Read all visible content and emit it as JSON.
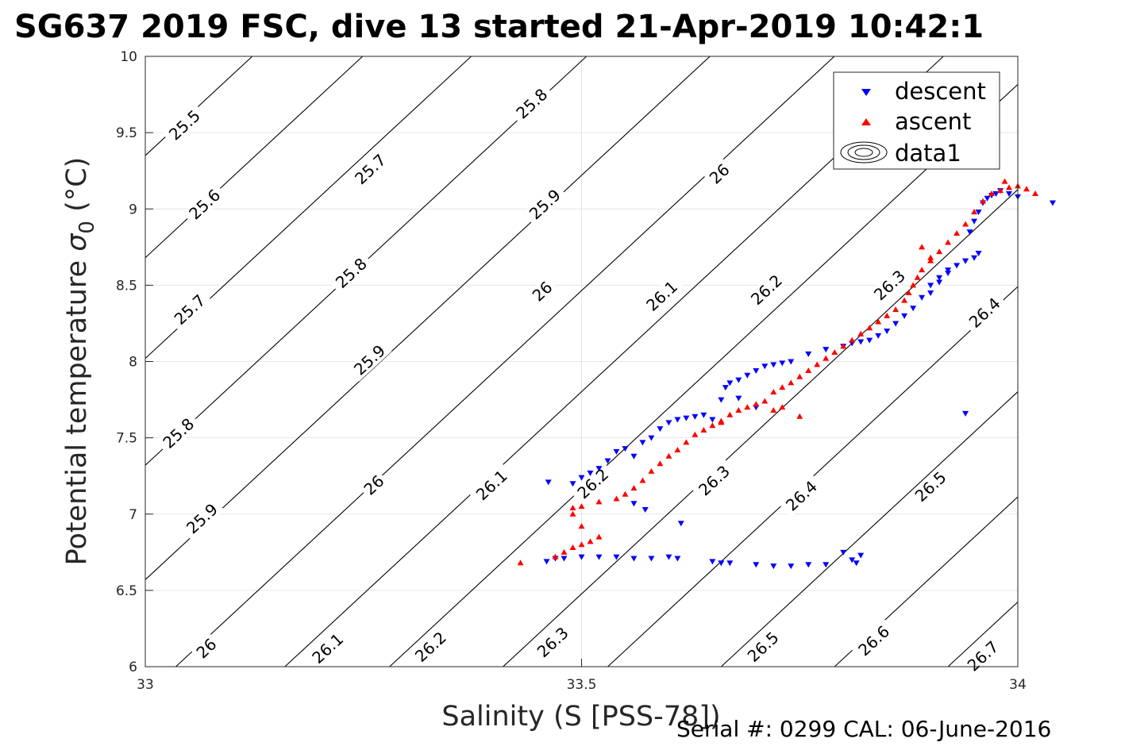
{
  "chart_data": {
    "type": "scatter",
    "title": "SG637 2019 FSC, dive 13 started 21-Apr-2019 10:42:1",
    "xlabel": "Salinity (S [PSS-78])",
    "ylabel_main": "Potential temperature ",
    "ylabel_sigma": "σ",
    "ylabel_sub": "0",
    "ylabel_unit": " (°C)",
    "footer": "Serial #: 0299 CAL: 06-June-2016",
    "xlim": [
      33,
      34
    ],
    "ylim": [
      6,
      10
    ],
    "x_ticks": [
      33,
      33.5,
      34
    ],
    "x_tick_labels": [
      "33",
      "33.5",
      "34"
    ],
    "y_ticks": [
      6,
      6.5,
      7,
      7.5,
      8,
      8.5,
      9,
      9.5,
      10
    ],
    "y_tick_labels": [
      "6",
      "6.5",
      "7",
      "7.5",
      "8",
      "8.5",
      "9",
      "9.5",
      "10"
    ],
    "grid": true,
    "legend_position": "top-right",
    "legend": [
      "descent",
      "ascent",
      "data1"
    ],
    "colors": {
      "descent": "#0000ff",
      "ascent": "#ff0000",
      "contour": "#000000",
      "grid": "#e6e6e6"
    },
    "density_contours": [
      {
        "label": "25.5",
        "x0": 33,
        "y0": 9.35
      },
      {
        "label": "25.6",
        "x0": 33,
        "y0": 8.68
      },
      {
        "label": "25.7",
        "x0": 33,
        "y0": 8.02
      },
      {
        "label": "25.8",
        "x0": 33,
        "y0": 7.32
      },
      {
        "label": "25.9",
        "x0": 33,
        "y0": 6.57
      },
      {
        "label": "26",
        "x0": 33.035,
        "y0": 6
      },
      {
        "label": "26.1",
        "x0": 33.16,
        "y0": 6
      },
      {
        "label": "26.2",
        "x0": 33.28,
        "y0": 6
      },
      {
        "label": "26.3",
        "x0": 33.41,
        "y0": 6
      },
      {
        "label": "26.4",
        "x0": 33.53,
        "y0": 6
      },
      {
        "label": "26.5",
        "x0": 33.66,
        "y0": 6
      },
      {
        "label": "26.6",
        "x0": 33.79,
        "y0": 6
      },
      {
        "label": "26.7",
        "x0": 33.92,
        "y0": 6
      }
    ],
    "contour_labels": [
      {
        "text": "25.5",
        "x": 33.045,
        "y": 9.55
      },
      {
        "text": "25.8",
        "x": 33.443,
        "y": 9.69
      },
      {
        "text": "25.7",
        "x": 33.258,
        "y": 9.26
      },
      {
        "text": "26",
        "x": 33.658,
        "y": 9.23
      },
      {
        "text": "25.6",
        "x": 33.068,
        "y": 9.03
      },
      {
        "text": "25.9",
        "x": 33.458,
        "y": 9.03
      },
      {
        "text": "25.8",
        "x": 33.236,
        "y": 8.58
      },
      {
        "text": "25.7",
        "x": 33.051,
        "y": 8.34
      },
      {
        "text": "26",
        "x": 33.455,
        "y": 8.46
      },
      {
        "text": "26.1",
        "x": 33.592,
        "y": 8.43
      },
      {
        "text": "26.2",
        "x": 33.712,
        "y": 8.47
      },
      {
        "text": "26.3",
        "x": 33.853,
        "y": 8.5
      },
      {
        "text": "26.4",
        "x": 33.962,
        "y": 8.32
      },
      {
        "text": "25.9",
        "x": 33.257,
        "y": 8.01
      },
      {
        "text": "25.8",
        "x": 33.038,
        "y": 7.53
      },
      {
        "text": "26",
        "x": 33.262,
        "y": 7.19
      },
      {
        "text": "26.1",
        "x": 33.397,
        "y": 7.19
      },
      {
        "text": "26.2",
        "x": 33.513,
        "y": 7.2
      },
      {
        "text": "26.3",
        "x": 33.652,
        "y": 7.22
      },
      {
        "text": "26.4",
        "x": 33.752,
        "y": 7.12
      },
      {
        "text": "26.5",
        "x": 33.9,
        "y": 7.18
      },
      {
        "text": "25.9",
        "x": 33.065,
        "y": 6.97
      },
      {
        "text": "26",
        "x": 33.07,
        "y": 6.12
      },
      {
        "text": "26.1",
        "x": 33.209,
        "y": 6.12
      },
      {
        "text": "26.2",
        "x": 33.327,
        "y": 6.13
      },
      {
        "text": "26.3",
        "x": 33.467,
        "y": 6.16
      },
      {
        "text": "26.5",
        "x": 33.708,
        "y": 6.13
      },
      {
        "text": "26.6",
        "x": 33.835,
        "y": 6.17
      },
      {
        "text": "26.7",
        "x": 33.96,
        "y": 6.07
      }
    ],
    "series": [
      {
        "name": "descent",
        "marker": "triangle-down",
        "points": [
          [
            33.46,
            6.69
          ],
          [
            33.47,
            6.71
          ],
          [
            33.48,
            6.71
          ],
          [
            33.5,
            6.72
          ],
          [
            33.52,
            6.72
          ],
          [
            33.54,
            6.72
          ],
          [
            33.56,
            6.71
          ],
          [
            33.58,
            6.71
          ],
          [
            33.6,
            6.72
          ],
          [
            33.61,
            6.71
          ],
          [
            33.65,
            6.69
          ],
          [
            33.66,
            6.68
          ],
          [
            33.67,
            6.68
          ],
          [
            33.7,
            6.67
          ],
          [
            33.72,
            6.66
          ],
          [
            33.74,
            6.66
          ],
          [
            33.76,
            6.67
          ],
          [
            33.78,
            6.67
          ],
          [
            33.8,
            6.75
          ],
          [
            33.81,
            6.7
          ],
          [
            33.82,
            6.73
          ],
          [
            33.815,
            6.68
          ],
          [
            33.462,
            7.21
          ],
          [
            33.49,
            7.2
          ],
          [
            33.5,
            7.24
          ],
          [
            33.51,
            7.27
          ],
          [
            33.52,
            7.3
          ],
          [
            33.53,
            7.35
          ],
          [
            33.54,
            7.41
          ],
          [
            33.55,
            7.43
          ],
          [
            33.56,
            7.38
          ],
          [
            33.57,
            7.47
          ],
          [
            33.58,
            7.5
          ],
          [
            33.59,
            7.56
          ],
          [
            33.6,
            7.6
          ],
          [
            33.61,
            7.62
          ],
          [
            33.62,
            7.63
          ],
          [
            33.63,
            7.64
          ],
          [
            33.64,
            7.65
          ],
          [
            33.65,
            7.62
          ],
          [
            33.56,
            7.07
          ],
          [
            33.573,
            7.03
          ],
          [
            33.614,
            6.94
          ],
          [
            33.66,
            7.75
          ],
          [
            33.665,
            7.83
          ],
          [
            33.67,
            7.86
          ],
          [
            33.68,
            7.88
          ],
          [
            33.69,
            7.91
          ],
          [
            33.7,
            7.94
          ],
          [
            33.71,
            7.97
          ],
          [
            33.72,
            7.98
          ],
          [
            33.73,
            7.99
          ],
          [
            33.74,
            8.0
          ],
          [
            33.76,
            8.05
          ],
          [
            33.78,
            8.08
          ],
          [
            33.8,
            8.1
          ],
          [
            33.81,
            8.12
          ],
          [
            33.82,
            8.13
          ],
          [
            33.83,
            8.14
          ],
          [
            33.84,
            8.17
          ],
          [
            33.85,
            8.2
          ],
          [
            33.86,
            8.25
          ],
          [
            33.87,
            8.3
          ],
          [
            33.88,
            8.35
          ],
          [
            33.89,
            8.42
          ],
          [
            33.9,
            8.5
          ],
          [
            33.91,
            8.55
          ],
          [
            33.92,
            8.6
          ],
          [
            33.93,
            8.63
          ],
          [
            33.94,
            8.66
          ],
          [
            33.95,
            8.68
          ],
          [
            33.955,
            8.71
          ],
          [
            33.9,
            8.45
          ],
          [
            33.91,
            8.52
          ],
          [
            33.92,
            8.58
          ],
          [
            33.94,
            8.66
          ],
          [
            33.945,
            8.85
          ],
          [
            33.95,
            8.92
          ],
          [
            33.955,
            8.98
          ],
          [
            33.96,
            9.04
          ],
          [
            33.965,
            9.07
          ],
          [
            33.97,
            9.09
          ],
          [
            33.975,
            9.1
          ],
          [
            33.98,
            9.12
          ],
          [
            33.99,
            9.1
          ],
          [
            34.0,
            9.08
          ],
          [
            34.04,
            9.04
          ],
          [
            33.94,
            7.66
          ],
          [
            33.68,
            7.76
          ],
          [
            33.7,
            7.7
          ]
        ]
      },
      {
        "name": "ascent",
        "marker": "triangle-up",
        "points": [
          [
            33.43,
            6.68
          ],
          [
            33.47,
            6.72
          ],
          [
            33.48,
            6.75
          ],
          [
            33.49,
            6.78
          ],
          [
            33.5,
            6.8
          ],
          [
            33.51,
            6.82
          ],
          [
            33.52,
            6.85
          ],
          [
            33.5,
            6.92
          ],
          [
            33.49,
            7.0
          ],
          [
            33.5,
            7.05
          ],
          [
            33.52,
            7.08
          ],
          [
            33.54,
            7.1
          ],
          [
            33.55,
            7.13
          ],
          [
            33.56,
            7.17
          ],
          [
            33.57,
            7.22
          ],
          [
            33.58,
            7.28
          ],
          [
            33.59,
            7.33
          ],
          [
            33.6,
            7.38
          ],
          [
            33.61,
            7.42
          ],
          [
            33.62,
            7.47
          ],
          [
            33.63,
            7.52
          ],
          [
            33.64,
            7.55
          ],
          [
            33.65,
            7.58
          ],
          [
            33.66,
            7.61
          ],
          [
            33.67,
            7.65
          ],
          [
            33.68,
            7.68
          ],
          [
            33.69,
            7.7
          ],
          [
            33.7,
            7.72
          ],
          [
            33.71,
            7.74
          ],
          [
            33.72,
            7.8
          ],
          [
            33.73,
            7.83
          ],
          [
            33.74,
            7.86
          ],
          [
            33.75,
            7.9
          ],
          [
            33.76,
            7.94
          ],
          [
            33.77,
            7.98
          ],
          [
            33.78,
            8.02
          ],
          [
            33.79,
            8.06
          ],
          [
            33.8,
            8.1
          ],
          [
            33.81,
            8.14
          ],
          [
            33.82,
            8.18
          ],
          [
            33.83,
            8.22
          ],
          [
            33.84,
            8.26
          ],
          [
            33.85,
            8.3
          ],
          [
            33.86,
            8.34
          ],
          [
            33.87,
            8.4
          ],
          [
            33.875,
            8.45
          ],
          [
            33.88,
            8.5
          ],
          [
            33.885,
            8.55
          ],
          [
            33.89,
            8.6
          ],
          [
            33.9,
            8.66
          ],
          [
            33.91,
            8.72
          ],
          [
            33.92,
            8.78
          ],
          [
            33.93,
            8.84
          ],
          [
            33.94,
            8.9
          ],
          [
            33.95,
            8.98
          ],
          [
            33.96,
            9.05
          ],
          [
            33.97,
            9.1
          ],
          [
            33.98,
            9.12
          ],
          [
            33.99,
            9.14
          ],
          [
            34.0,
            9.15
          ],
          [
            34.01,
            9.13
          ],
          [
            34.02,
            9.1
          ],
          [
            33.985,
            9.18
          ],
          [
            33.89,
            8.75
          ],
          [
            33.9,
            8.68
          ],
          [
            33.73,
            7.7
          ],
          [
            33.72,
            7.68
          ],
          [
            33.75,
            7.64
          ],
          [
            33.66,
            7.6
          ],
          [
            33.49,
            7.04
          ]
        ]
      }
    ]
  }
}
